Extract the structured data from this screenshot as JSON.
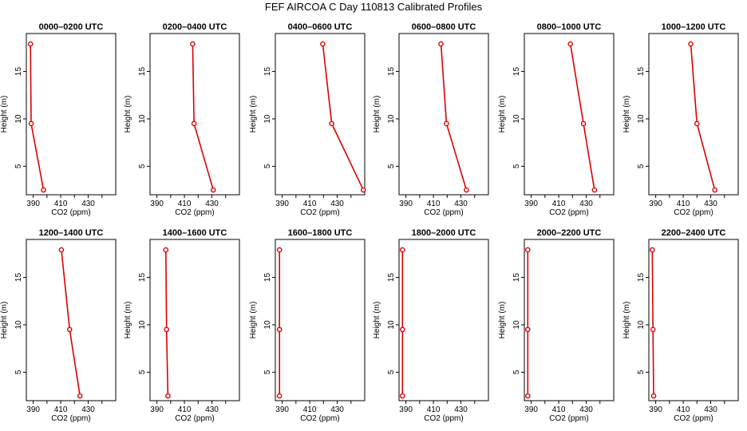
{
  "title": "FEF AIRCOA C  Day 110813  Calibrated Profiles",
  "chart_data": [
    {
      "type": "line",
      "title": "0000–0200 UTC",
      "xlabel": "CO2 (ppm)",
      "ylabel": "Height (m)",
      "xlim": [
        385,
        450
      ],
      "ylim": [
        2,
        19
      ],
      "x_ticks": [
        390,
        410,
        430
      ],
      "y_ticks": [
        5,
        10,
        15
      ],
      "series": [
        {
          "x": [
            397.5,
            388.5,
            388
          ],
          "y": [
            2.5,
            9.5,
            17.9
          ]
        }
      ]
    },
    {
      "type": "line",
      "title": "0200–0400 UTC",
      "xlabel": "CO2 (ppm)",
      "ylabel": "Height (m)",
      "xlim": [
        385,
        450
      ],
      "ylim": [
        2,
        19
      ],
      "x_ticks": [
        390,
        410,
        430
      ],
      "y_ticks": [
        5,
        10,
        15
      ],
      "series": [
        {
          "x": [
            431,
            417,
            416
          ],
          "y": [
            2.5,
            9.5,
            17.9
          ]
        }
      ]
    },
    {
      "type": "line",
      "title": "0400–0600 UTC",
      "xlabel": "CO2 (ppm)",
      "ylabel": "Height (m)",
      "xlim": [
        385,
        450
      ],
      "ylim": [
        2,
        19
      ],
      "x_ticks": [
        390,
        410,
        430
      ],
      "y_ticks": [
        5,
        10,
        15
      ],
      "series": [
        {
          "x": [
            449,
            426,
            419.5
          ],
          "y": [
            2.5,
            9.5,
            17.9
          ]
        }
      ]
    },
    {
      "type": "line",
      "title": "0600–0800 UTC",
      "xlabel": "CO2 (ppm)",
      "ylabel": "Height (m)",
      "xlim": [
        385,
        450
      ],
      "ylim": [
        2,
        19
      ],
      "x_ticks": [
        390,
        410,
        430
      ],
      "y_ticks": [
        5,
        10,
        15
      ],
      "series": [
        {
          "x": [
            434,
            419.5,
            415.5
          ],
          "y": [
            2.5,
            9.5,
            17.9
          ]
        }
      ]
    },
    {
      "type": "line",
      "title": "0800–1000 UTC",
      "xlabel": "CO2 (ppm)",
      "ylabel": "Height (m)",
      "xlim": [
        385,
        450
      ],
      "ylim": [
        2,
        19
      ],
      "x_ticks": [
        390,
        410,
        430
      ],
      "y_ticks": [
        5,
        10,
        15
      ],
      "series": [
        {
          "x": [
            436,
            428,
            418.5
          ],
          "y": [
            2.5,
            9.5,
            17.9
          ]
        }
      ]
    },
    {
      "type": "line",
      "title": "1000–1200 UTC",
      "xlabel": "CO2 (ppm)",
      "ylabel": "Height (m)",
      "xlim": [
        385,
        450
      ],
      "ylim": [
        2,
        19
      ],
      "x_ticks": [
        390,
        410,
        430
      ],
      "y_ticks": [
        5,
        10,
        15
      ],
      "series": [
        {
          "x": [
            433,
            420,
            415.5
          ],
          "y": [
            2.5,
            9.5,
            17.9
          ]
        }
      ]
    },
    {
      "type": "line",
      "title": "1200–1400 UTC",
      "xlabel": "CO2 (ppm)",
      "ylabel": "Height (m)",
      "xlim": [
        385,
        450
      ],
      "ylim": [
        2,
        19
      ],
      "x_ticks": [
        390,
        410,
        430
      ],
      "y_ticks": [
        5,
        10,
        15
      ],
      "series": [
        {
          "x": [
            424,
            416.5,
            410.5
          ],
          "y": [
            2.5,
            9.5,
            17.9
          ]
        }
      ]
    },
    {
      "type": "line",
      "title": "1400–1600 UTC",
      "xlabel": "CO2 (ppm)",
      "ylabel": "Height (m)",
      "xlim": [
        385,
        450
      ],
      "ylim": [
        2,
        19
      ],
      "x_ticks": [
        390,
        410,
        430
      ],
      "y_ticks": [
        5,
        10,
        15
      ],
      "series": [
        {
          "x": [
            398,
            397,
            396.5
          ],
          "y": [
            2.5,
            9.5,
            17.9
          ]
        }
      ]
    },
    {
      "type": "line",
      "title": "1600–1800 UTC",
      "xlabel": "CO2 (ppm)",
      "ylabel": "Height (m)",
      "xlim": [
        385,
        450
      ],
      "ylim": [
        2,
        19
      ],
      "x_ticks": [
        390,
        410,
        430
      ],
      "y_ticks": [
        5,
        10,
        15
      ],
      "series": [
        {
          "x": [
            388,
            388,
            388
          ],
          "y": [
            2.5,
            9.5,
            17.9
          ]
        }
      ]
    },
    {
      "type": "line",
      "title": "1800–2000 UTC",
      "xlabel": "CO2 (ppm)",
      "ylabel": "Height (m)",
      "xlim": [
        385,
        450
      ],
      "ylim": [
        2,
        19
      ],
      "x_ticks": [
        390,
        410,
        430
      ],
      "y_ticks": [
        5,
        10,
        15
      ],
      "series": [
        {
          "x": [
            387.5,
            387.5,
            387.5
          ],
          "y": [
            2.5,
            9.5,
            17.9
          ]
        }
      ]
    },
    {
      "type": "line",
      "title": "2000–2200 UTC",
      "xlabel": "CO2 (ppm)",
      "ylabel": "Height (m)",
      "xlim": [
        385,
        450
      ],
      "ylim": [
        2,
        19
      ],
      "x_ticks": [
        390,
        410,
        430
      ],
      "y_ticks": [
        5,
        10,
        15
      ],
      "series": [
        {
          "x": [
            387.5,
            387.5,
            387.5
          ],
          "y": [
            2.5,
            9.5,
            17.9
          ]
        }
      ]
    },
    {
      "type": "line",
      "title": "2200–2400 UTC",
      "xlabel": "CO2 (ppm)",
      "ylabel": "Height (m)",
      "xlim": [
        385,
        450
      ],
      "ylim": [
        2,
        19
      ],
      "x_ticks": [
        390,
        410,
        430
      ],
      "y_ticks": [
        5,
        10,
        15
      ],
      "series": [
        {
          "x": [
            388.5,
            388,
            387.5
          ],
          "y": [
            2.5,
            9.5,
            17.9
          ]
        }
      ]
    }
  ]
}
